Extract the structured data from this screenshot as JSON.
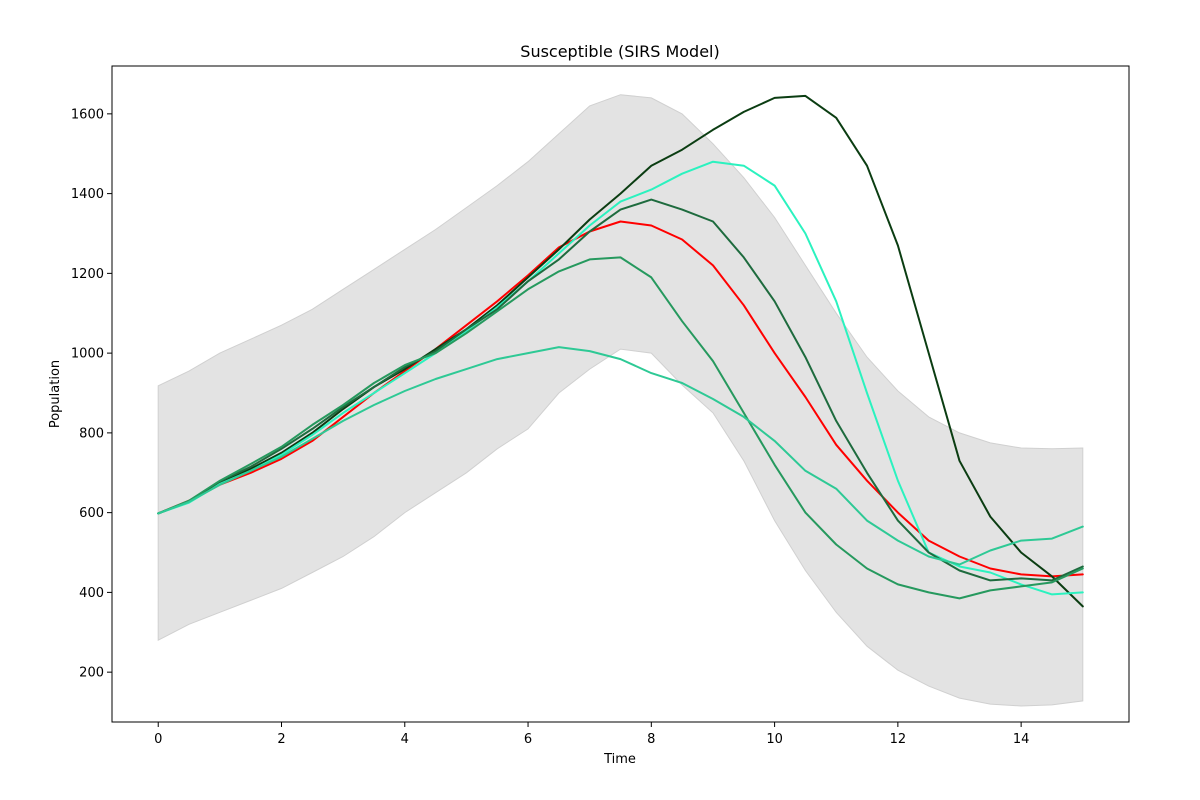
{
  "chart_data": {
    "type": "line",
    "title": "Susceptible (SIRS Model)",
    "xlabel": "Time",
    "ylabel": "Population",
    "xlim": [
      -0.75,
      15.75
    ],
    "ylim": [
      75,
      1720
    ],
    "xticks": [
      0,
      2,
      4,
      6,
      8,
      10,
      12,
      14
    ],
    "yticks": [
      200,
      400,
      600,
      800,
      1000,
      1200,
      1400,
      1600
    ],
    "grid": false,
    "legend": "none",
    "band": {
      "color": "#e3e3e3",
      "x": [
        0,
        0.5,
        1,
        1.5,
        2,
        2.5,
        3,
        3.5,
        4,
        4.5,
        5,
        5.5,
        6,
        6.5,
        7,
        7.5,
        8,
        8.5,
        9,
        9.5,
        10,
        10.5,
        11,
        11.5,
        12,
        12.5,
        13,
        13.5,
        14,
        14.5,
        15
      ],
      "upper": [
        918,
        955,
        1000,
        1035,
        1070,
        1110,
        1160,
        1210,
        1260,
        1310,
        1365,
        1420,
        1480,
        1550,
        1620,
        1648,
        1640,
        1600,
        1525,
        1440,
        1340,
        1220,
        1100,
        990,
        905,
        840,
        800,
        775,
        762,
        760,
        762
      ],
      "lower": [
        280,
        320,
        350,
        380,
        410,
        450,
        490,
        540,
        600,
        650,
        700,
        760,
        810,
        900,
        960,
        1010,
        1000,
        920,
        850,
        730,
        580,
        455,
        350,
        265,
        205,
        165,
        135,
        120,
        115,
        118,
        128
      ]
    },
    "x": [
      0,
      0.5,
      1,
      1.5,
      2,
      2.5,
      3,
      3.5,
      4,
      4.5,
      5,
      5.5,
      6,
      6.5,
      7,
      7.5,
      8,
      8.5,
      9,
      9.5,
      10,
      10.5,
      11,
      11.5,
      12,
      12.5,
      13,
      13.5,
      14,
      14.5,
      15
    ],
    "series": [
      {
        "color": "#ff0000",
        "values": [
          598,
          630,
          670,
          700,
          735,
          780,
          840,
          900,
          955,
          1010,
          1070,
          1130,
          1195,
          1265,
          1305,
          1330,
          1320,
          1285,
          1220,
          1120,
          1000,
          890,
          770,
          680,
          600,
          530,
          490,
          460,
          445,
          440,
          445
        ]
      },
      {
        "color": "#0b3d12",
        "values": [
          598,
          628,
          675,
          710,
          750,
          800,
          860,
          915,
          960,
          1010,
          1060,
          1120,
          1190,
          1260,
          1335,
          1400,
          1470,
          1510,
          1560,
          1605,
          1640,
          1645,
          1590,
          1470,
          1270,
          1000,
          730,
          590,
          500,
          440,
          365
        ]
      },
      {
        "color": "#2bf2bf",
        "values": [
          598,
          625,
          672,
          705,
          745,
          795,
          850,
          900,
          950,
          1000,
          1055,
          1115,
          1180,
          1250,
          1320,
          1380,
          1410,
          1450,
          1480,
          1470,
          1420,
          1300,
          1130,
          900,
          680,
          500,
          465,
          450,
          420,
          395,
          400
        ]
      },
      {
        "color": "#1e6b3e",
        "values": [
          598,
          628,
          678,
          715,
          760,
          810,
          865,
          915,
          965,
          1005,
          1060,
          1110,
          1180,
          1235,
          1305,
          1360,
          1385,
          1360,
          1330,
          1240,
          1130,
          990,
          830,
          700,
          580,
          500,
          455,
          430,
          435,
          430,
          465
        ]
      },
      {
        "color": "#26995e",
        "values": [
          598,
          630,
          680,
          722,
          765,
          820,
          870,
          925,
          970,
          1000,
          1050,
          1105,
          1160,
          1205,
          1235,
          1240,
          1190,
          1080,
          980,
          850,
          720,
          600,
          520,
          460,
          420,
          400,
          385,
          405,
          415,
          425,
          460
        ]
      },
      {
        "color": "#2ec995",
        "values": [
          598,
          627,
          670,
          705,
          740,
          785,
          830,
          870,
          905,
          935,
          960,
          985,
          1000,
          1015,
          1005,
          985,
          950,
          925,
          885,
          840,
          780,
          705,
          660,
          580,
          530,
          490,
          470,
          505,
          530,
          535,
          565
        ]
      }
    ]
  }
}
